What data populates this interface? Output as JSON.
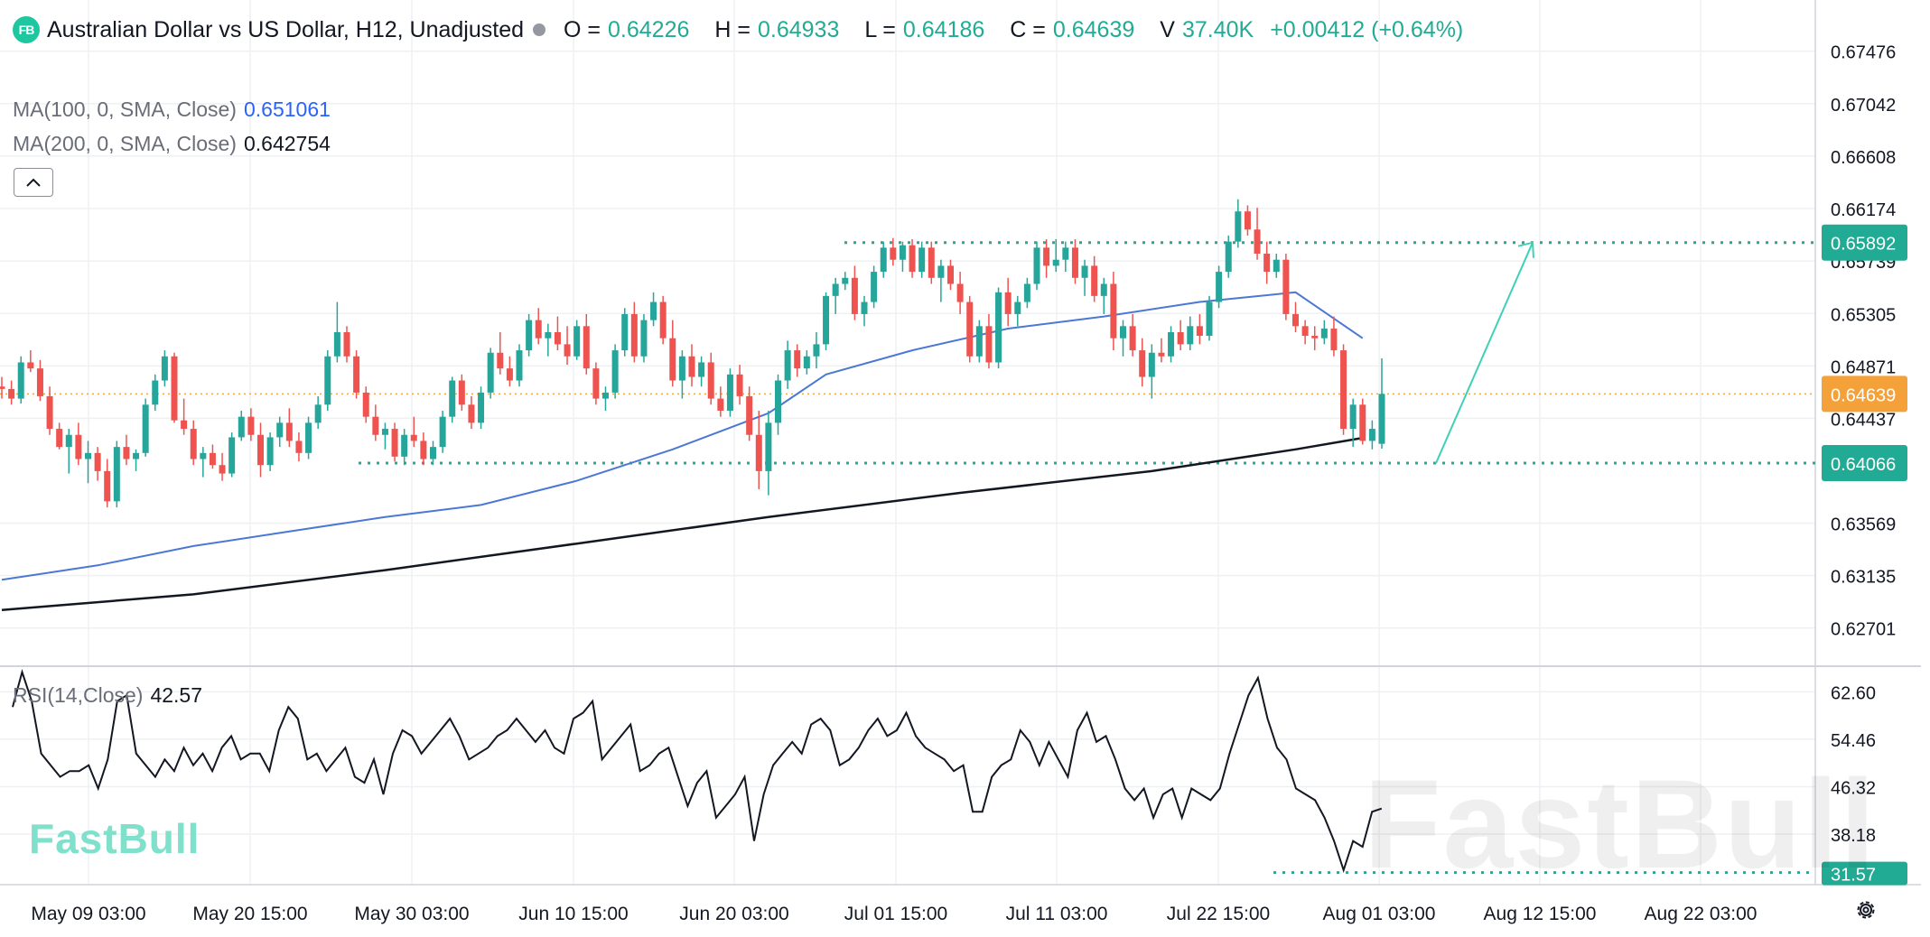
{
  "header": {
    "logo": "FB",
    "title": "Australian Dollar vs US Dollar, H12, Unadjusted",
    "open_label": "O =",
    "open": "0.64226",
    "high_label": "H =",
    "high": "0.64933",
    "low_label": "L =",
    "low": "0.64186",
    "close_label": "C =",
    "close": "0.64639",
    "volume_label": "V",
    "volume": "37.40K",
    "change": "+0.00412 (+0.64%)"
  },
  "indicators": {
    "ma100_label": "MA(100, 0, SMA, Close)",
    "ma100_value": "0.651061",
    "ma200_label": "MA(200, 0, SMA, Close)",
    "ma200_value": "0.642754",
    "rsi_label": "RSI(14,Close)",
    "rsi_value": "42.57",
    "collapse_icon": "chevron-up-icon"
  },
  "branding": {
    "logo_text": "FastBull",
    "watermark": "FastBull"
  },
  "settings_icon": "gear-icon",
  "colors": {
    "up": "#26a69a",
    "down": "#ef5350",
    "accent": "#22ab94",
    "ma100": "#4a78d4",
    "ma200": "#131722"
  },
  "chart_data": [
    {
      "type": "candlestick",
      "title": "Australian Dollar vs US Dollar, H12, Unadjusted",
      "ylim": [
        0.624,
        0.679
      ],
      "y_ticks": [
        "0.67476",
        "0.67042",
        "0.66608",
        "0.66174",
        "0.65739",
        "0.65305",
        "0.64871",
        "0.64437",
        "0.63569",
        "0.63135",
        "0.62701"
      ],
      "x_tick_labels": [
        "May 09 03:00",
        "May 20 15:00",
        "May 30 03:00",
        "Jun 10 15:00",
        "Jun 20 03:00",
        "Jul 01 15:00",
        "Jul 11 03:00",
        "Jul 22 15:00",
        "Aug 01 03:00",
        "Aug 12 15:00",
        "Aug 22 03:00"
      ],
      "price_badges": [
        {
          "value": "0.65892",
          "style": "resistance"
        },
        {
          "value": "0.64639",
          "style": "last"
        },
        {
          "value": "0.64066",
          "style": "support"
        }
      ],
      "levels": {
        "resistance": 0.65892,
        "last_close": 0.64639,
        "support": 0.64066
      },
      "forecast_arrow": {
        "from": 0.64066,
        "to": 0.65892
      },
      "candles": [
        [
          0.647,
          0.6478,
          0.646,
          0.6468
        ],
        [
          0.6468,
          0.6475,
          0.6455,
          0.646
        ],
        [
          0.646,
          0.6495,
          0.6456,
          0.649
        ],
        [
          0.649,
          0.65,
          0.6482,
          0.6485
        ],
        [
          0.6485,
          0.6492,
          0.6458,
          0.6462
        ],
        [
          0.6462,
          0.647,
          0.643,
          0.6435
        ],
        [
          0.6435,
          0.644,
          0.6418,
          0.642
        ],
        [
          0.642,
          0.6435,
          0.6398,
          0.643
        ],
        [
          0.643,
          0.644,
          0.6405,
          0.641
        ],
        [
          0.641,
          0.6425,
          0.639,
          0.6415
        ],
        [
          0.6415,
          0.642,
          0.6392,
          0.64
        ],
        [
          0.64,
          0.641,
          0.637,
          0.6375
        ],
        [
          0.6375,
          0.6425,
          0.637,
          0.642
        ],
        [
          0.642,
          0.643,
          0.6405,
          0.641
        ],
        [
          0.641,
          0.6418,
          0.64,
          0.6415
        ],
        [
          0.6415,
          0.646,
          0.6412,
          0.6455
        ],
        [
          0.6455,
          0.648,
          0.645,
          0.6475
        ],
        [
          0.6475,
          0.65,
          0.647,
          0.6495
        ],
        [
          0.6495,
          0.6498,
          0.644,
          0.6442
        ],
        [
          0.6442,
          0.646,
          0.643,
          0.6435
        ],
        [
          0.6435,
          0.6442,
          0.6405,
          0.641
        ],
        [
          0.641,
          0.642,
          0.6395,
          0.6415
        ],
        [
          0.6415,
          0.6422,
          0.6402,
          0.6405
        ],
        [
          0.6405,
          0.6415,
          0.6392,
          0.6398
        ],
        [
          0.6398,
          0.6432,
          0.6395,
          0.6428
        ],
        [
          0.6428,
          0.645,
          0.6425,
          0.6445
        ],
        [
          0.6445,
          0.6452,
          0.6425,
          0.643
        ],
        [
          0.643,
          0.644,
          0.6395,
          0.6405
        ],
        [
          0.6405,
          0.6432,
          0.64,
          0.6428
        ],
        [
          0.6428,
          0.6445,
          0.642,
          0.644
        ],
        [
          0.644,
          0.6452,
          0.642,
          0.6425
        ],
        [
          0.6425,
          0.6432,
          0.6408,
          0.6415
        ],
        [
          0.6415,
          0.6445,
          0.641,
          0.644
        ],
        [
          0.644,
          0.6462,
          0.6435,
          0.6455
        ],
        [
          0.6455,
          0.65,
          0.645,
          0.6495
        ],
        [
          0.6495,
          0.654,
          0.649,
          0.6515
        ],
        [
          0.6515,
          0.652,
          0.649,
          0.6495
        ],
        [
          0.6495,
          0.65,
          0.646,
          0.6465
        ],
        [
          0.6465,
          0.647,
          0.644,
          0.6445
        ],
        [
          0.6445,
          0.6455,
          0.6425,
          0.643
        ],
        [
          0.643,
          0.644,
          0.6418,
          0.6435
        ],
        [
          0.6435,
          0.644,
          0.6408,
          0.6412
        ],
        [
          0.6412,
          0.6435,
          0.6405,
          0.643
        ],
        [
          0.643,
          0.6445,
          0.642,
          0.6425
        ],
        [
          0.6425,
          0.6432,
          0.6405,
          0.641
        ],
        [
          0.641,
          0.6425,
          0.6405,
          0.642
        ],
        [
          0.642,
          0.645,
          0.6415,
          0.6445
        ],
        [
          0.6445,
          0.6478,
          0.644,
          0.6475
        ],
        [
          0.6475,
          0.648,
          0.645,
          0.6455
        ],
        [
          0.6455,
          0.6462,
          0.6435,
          0.644
        ],
        [
          0.644,
          0.647,
          0.6435,
          0.6465
        ],
        [
          0.6465,
          0.6502,
          0.646,
          0.6498
        ],
        [
          0.6498,
          0.6515,
          0.648,
          0.6485
        ],
        [
          0.6485,
          0.6495,
          0.647,
          0.6475
        ],
        [
          0.6475,
          0.6505,
          0.647,
          0.65
        ],
        [
          0.65,
          0.653,
          0.6495,
          0.6525
        ],
        [
          0.6525,
          0.6535,
          0.6505,
          0.651
        ],
        [
          0.651,
          0.6522,
          0.6495,
          0.6515
        ],
        [
          0.6515,
          0.6528,
          0.65,
          0.6505
        ],
        [
          0.6505,
          0.652,
          0.6488,
          0.6495
        ],
        [
          0.6495,
          0.6525,
          0.6492,
          0.652
        ],
        [
          0.652,
          0.653,
          0.648,
          0.6485
        ],
        [
          0.6485,
          0.649,
          0.6455,
          0.646
        ],
        [
          0.646,
          0.647,
          0.645,
          0.6465
        ],
        [
          0.6465,
          0.6505,
          0.646,
          0.65
        ],
        [
          0.65,
          0.6535,
          0.6495,
          0.653
        ],
        [
          0.653,
          0.654,
          0.649,
          0.6495
        ],
        [
          0.6495,
          0.653,
          0.649,
          0.6525
        ],
        [
          0.6525,
          0.6548,
          0.652,
          0.654
        ],
        [
          0.654,
          0.6545,
          0.6505,
          0.651
        ],
        [
          0.651,
          0.6525,
          0.647,
          0.6475
        ],
        [
          0.6475,
          0.65,
          0.646,
          0.6495
        ],
        [
          0.6495,
          0.6505,
          0.647,
          0.6478
        ],
        [
          0.6478,
          0.6495,
          0.647,
          0.649
        ],
        [
          0.649,
          0.6498,
          0.6455,
          0.646
        ],
        [
          0.646,
          0.647,
          0.6445,
          0.645
        ],
        [
          0.645,
          0.6485,
          0.6445,
          0.648
        ],
        [
          0.648,
          0.6488,
          0.6455,
          0.6462
        ],
        [
          0.6462,
          0.647,
          0.6425,
          0.643
        ],
        [
          0.643,
          0.645,
          0.6385,
          0.64
        ],
        [
          0.64,
          0.645,
          0.638,
          0.644
        ],
        [
          0.644,
          0.648,
          0.643,
          0.6475
        ],
        [
          0.6475,
          0.6508,
          0.6468,
          0.65
        ],
        [
          0.65,
          0.6505,
          0.6478,
          0.6485
        ],
        [
          0.6485,
          0.65,
          0.648,
          0.6495
        ],
        [
          0.6495,
          0.6515,
          0.6485,
          0.6505
        ],
        [
          0.6505,
          0.6548,
          0.65,
          0.6545
        ],
        [
          0.6545,
          0.656,
          0.653,
          0.6555
        ],
        [
          0.6555,
          0.6565,
          0.655,
          0.656
        ],
        [
          0.656,
          0.657,
          0.6525,
          0.653
        ],
        [
          0.653,
          0.6545,
          0.652,
          0.654
        ],
        [
          0.654,
          0.657,
          0.6535,
          0.6565
        ],
        [
          0.6565,
          0.659,
          0.656,
          0.6585
        ],
        [
          0.6585,
          0.6593,
          0.657,
          0.6575
        ],
        [
          0.6575,
          0.659,
          0.6565,
          0.6587
        ],
        [
          0.6587,
          0.6592,
          0.656,
          0.6565
        ],
        [
          0.6565,
          0.659,
          0.656,
          0.6585
        ],
        [
          0.6585,
          0.659,
          0.6555,
          0.656
        ],
        [
          0.656,
          0.6575,
          0.654,
          0.657
        ],
        [
          0.657,
          0.6575,
          0.655,
          0.6555
        ],
        [
          0.6555,
          0.6565,
          0.653,
          0.654
        ],
        [
          0.654,
          0.6545,
          0.649,
          0.6495
        ],
        [
          0.6495,
          0.6525,
          0.649,
          0.652
        ],
        [
          0.652,
          0.653,
          0.6485,
          0.649
        ],
        [
          0.649,
          0.6552,
          0.6485,
          0.6548
        ],
        [
          0.6548,
          0.656,
          0.652,
          0.653
        ],
        [
          0.653,
          0.6545,
          0.652,
          0.654
        ],
        [
          0.654,
          0.656,
          0.6535,
          0.6555
        ],
        [
          0.6555,
          0.659,
          0.655,
          0.6585
        ],
        [
          0.6585,
          0.6592,
          0.656,
          0.657
        ],
        [
          0.657,
          0.6592,
          0.6565,
          0.6575
        ],
        [
          0.6575,
          0.659,
          0.6565,
          0.6585
        ],
        [
          0.6585,
          0.6592,
          0.6555,
          0.656
        ],
        [
          0.656,
          0.6575,
          0.6545,
          0.657
        ],
        [
          0.657,
          0.6578,
          0.654,
          0.6545
        ],
        [
          0.6545,
          0.656,
          0.653,
          0.6555
        ],
        [
          0.6555,
          0.6565,
          0.65,
          0.651
        ],
        [
          0.651,
          0.6525,
          0.6495,
          0.652
        ],
        [
          0.652,
          0.653,
          0.6495,
          0.65
        ],
        [
          0.65,
          0.651,
          0.647,
          0.6478
        ],
        [
          0.6478,
          0.6505,
          0.646,
          0.6498
        ],
        [
          0.6498,
          0.651,
          0.649,
          0.6495
        ],
        [
          0.6495,
          0.652,
          0.649,
          0.6515
        ],
        [
          0.6515,
          0.6525,
          0.65,
          0.6505
        ],
        [
          0.6505,
          0.6528,
          0.65,
          0.652
        ],
        [
          0.652,
          0.653,
          0.6505,
          0.6512
        ],
        [
          0.6512,
          0.6545,
          0.6508,
          0.654
        ],
        [
          0.654,
          0.657,
          0.6535,
          0.6565
        ],
        [
          0.6565,
          0.6595,
          0.656,
          0.659
        ],
        [
          0.659,
          0.6625,
          0.6585,
          0.6615
        ],
        [
          0.6615,
          0.662,
          0.6595,
          0.66
        ],
        [
          0.66,
          0.6618,
          0.6575,
          0.658
        ],
        [
          0.658,
          0.659,
          0.6555,
          0.6565
        ],
        [
          0.6565,
          0.658,
          0.656,
          0.6575
        ],
        [
          0.6575,
          0.658,
          0.6525,
          0.653
        ],
        [
          0.653,
          0.654,
          0.6515,
          0.652
        ],
        [
          0.652,
          0.6525,
          0.6505,
          0.6512
        ],
        [
          0.6512,
          0.652,
          0.65,
          0.651
        ],
        [
          0.651,
          0.6525,
          0.6505,
          0.6518
        ],
        [
          0.6518,
          0.6528,
          0.6495,
          0.65
        ],
        [
          0.65,
          0.6505,
          0.643,
          0.6435
        ],
        [
          0.6435,
          0.646,
          0.642,
          0.6455
        ],
        [
          0.6455,
          0.646,
          0.6422,
          0.6425
        ],
        [
          0.6425,
          0.6442,
          0.6418,
          0.6435
        ],
        [
          0.64226,
          0.64933,
          0.64186,
          0.64639
        ]
      ],
      "ma100": [
        [
          0,
          0.631
        ],
        [
          10,
          0.6322
        ],
        [
          20,
          0.6338
        ],
        [
          30,
          0.635
        ],
        [
          40,
          0.6362
        ],
        [
          50,
          0.6372
        ],
        [
          60,
          0.6392
        ],
        [
          70,
          0.6418
        ],
        [
          80,
          0.6448
        ],
        [
          86,
          0.648
        ],
        [
          95,
          0.65
        ],
        [
          105,
          0.6518
        ],
        [
          115,
          0.6528
        ],
        [
          125,
          0.654
        ],
        [
          135,
          0.6548
        ],
        [
          142,
          0.651
        ]
      ],
      "ma200": [
        [
          0,
          0.6285
        ],
        [
          20,
          0.6298
        ],
        [
          40,
          0.6318
        ],
        [
          60,
          0.634
        ],
        [
          80,
          0.6362
        ],
        [
          100,
          0.6382
        ],
        [
          120,
          0.64
        ],
        [
          135,
          0.6418
        ],
        [
          142,
          0.64275
        ]
      ]
    },
    {
      "type": "line",
      "title": "RSI(14,Close)",
      "ylim": [
        29.5,
        67
      ],
      "y_ticks": [
        "62.60",
        "54.46",
        "46.32",
        "38.18"
      ],
      "badge": "31.57",
      "level": 31.57,
      "values": [
        60,
        66,
        61,
        52,
        50,
        48,
        49,
        49,
        50,
        46,
        51,
        61,
        62,
        52,
        50,
        48,
        51,
        49,
        53,
        50,
        52,
        49,
        53,
        55,
        51,
        52,
        52,
        49,
        56,
        60,
        58,
        51,
        52,
        49,
        51,
        53,
        48,
        47,
        51,
        45,
        52,
        56,
        55,
        52,
        54,
        56,
        58,
        55,
        51,
        52,
        53,
        55,
        56,
        58,
        56,
        54,
        56,
        53,
        52,
        58,
        59,
        61,
        51,
        53,
        55,
        57,
        49,
        50,
        52,
        53,
        48,
        43,
        47,
        49,
        41,
        43,
        45,
        48,
        37,
        45,
        50,
        52,
        54,
        52,
        57,
        58,
        56,
        50,
        51,
        53,
        56,
        58,
        55,
        56,
        59,
        55,
        53,
        52,
        51,
        49,
        50,
        42,
        42,
        48,
        50,
        51,
        56,
        54,
        50,
        54,
        51,
        48,
        56,
        59,
        54,
        55,
        51,
        46,
        44,
        46,
        41,
        45,
        46,
        41,
        46,
        45,
        44,
        46,
        52,
        57,
        62,
        65,
        58,
        53,
        51,
        46,
        45,
        44,
        41,
        37,
        32,
        37,
        36,
        42,
        42.57
      ]
    }
  ]
}
